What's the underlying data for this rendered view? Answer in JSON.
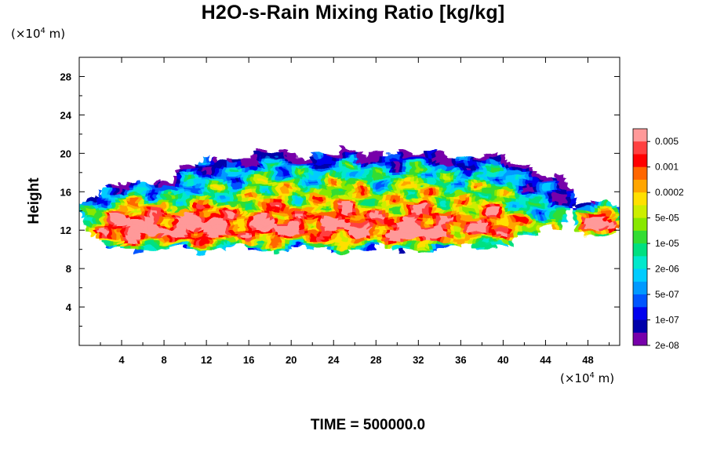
{
  "chart_data": {
    "type": "heatmap",
    "title": "H2O-s-Rain Mixing Ratio [kg/kg]",
    "xlabel": "",
    "ylabel": "Height",
    "x_unit_prefix": "(×10",
    "x_unit_exp": "4",
    "x_unit_suffix": " m)",
    "y_unit_prefix": "(×10",
    "y_unit_exp": "4",
    "y_unit_suffix": " m)",
    "xlim": [
      0,
      51
    ],
    "ylim": [
      0,
      30
    ],
    "x_ticks": [
      4,
      8,
      12,
      16,
      20,
      24,
      28,
      32,
      36,
      40,
      44,
      48
    ],
    "y_ticks": [
      4,
      8,
      12,
      16,
      20,
      24,
      28
    ],
    "colorbar": {
      "labels": [
        "0.005",
        "0.001",
        "0.0002",
        "5e-05",
        "1e-05",
        "2e-06",
        "5e-07",
        "1e-07",
        "2e-08"
      ],
      "colors": [
        "#ff9999",
        "#ff4040",
        "#ff0000",
        "#ff6600",
        "#ffa500",
        "#ffe000",
        "#ccee00",
        "#88e800",
        "#33dd33",
        "#00e080",
        "#00e8cc",
        "#00ccff",
        "#0099ff",
        "#0055ff",
        "#0000ee",
        "#0000aa",
        "#7700aa"
      ]
    },
    "cloud_bands": [
      {
        "x": [
          0,
          18
        ],
        "y": [
          10,
          17
        ]
      },
      {
        "x": [
          7,
          46
        ],
        "y": [
          10,
          20
        ]
      },
      {
        "x": [
          28,
          36
        ],
        "y": [
          10.8,
          12.2
        ]
      },
      {
        "x": [
          46.5,
          51
        ],
        "y": [
          11.5,
          15
        ]
      }
    ],
    "grid": false,
    "legend": "colorbar-right"
  },
  "time_label": "TIME = 500000.0"
}
